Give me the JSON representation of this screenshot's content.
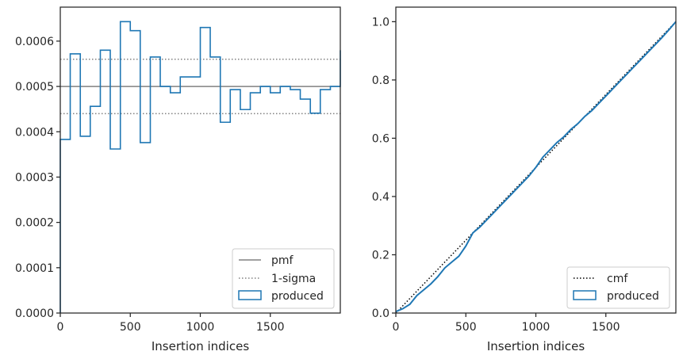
{
  "chart_data": [
    {
      "type": "step",
      "title": "",
      "xlabel": "Insertion indices",
      "ylabel": "",
      "xlim": [
        0,
        2000
      ],
      "ylim": [
        0,
        0.000675
      ],
      "xticks": [
        0,
        500,
        1000,
        1500
      ],
      "yticks": [
        0,
        0.0001,
        0.0002,
        0.0003,
        0.0004,
        0.0005,
        0.0006
      ],
      "ytick_labels": [
        "0.0000",
        "0.0001",
        "0.0002",
        "0.0003",
        "0.0004",
        "0.0005",
        "0.0006"
      ],
      "xtick_labels": [
        "0",
        "500",
        "1000",
        "1500"
      ],
      "legend_position": "lower-right",
      "legend": [
        "pmf",
        "1-sigma",
        "produced"
      ],
      "pmf": 0.0005,
      "sigma_band": [
        0.00044,
        0.00056
      ],
      "bin_edges": [
        0,
        71,
        143,
        214,
        286,
        357,
        429,
        500,
        571,
        643,
        714,
        786,
        857,
        929,
        1000,
        1071,
        1143,
        1214,
        1286,
        1357,
        1429,
        1500,
        1571,
        1643,
        1714,
        1786,
        1857,
        1929,
        2000
      ],
      "produced": [
        0.000383,
        0.000572,
        0.00039,
        0.000456,
        0.00058,
        0.000362,
        0.000643,
        0.000623,
        0.000376,
        0.000565,
        0.0005,
        0.000486,
        0.000521,
        0.000521,
        0.00063,
        0.000565,
        0.000421,
        0.000493,
        0.000449,
        0.000486,
        0.0005,
        0.000486,
        0.0005,
        0.000493,
        0.000472,
        0.000441,
        0.000493,
        0.0005,
        0.00058
      ],
      "colors": {
        "produced": "#1f77b4",
        "pmf": "#808080",
        "sigma": "#808080"
      }
    },
    {
      "type": "line",
      "title": "",
      "xlabel": "Insertion indices",
      "ylabel": "",
      "xlim": [
        0,
        2000
      ],
      "ylim": [
        0,
        1.05
      ],
      "xticks": [
        0,
        500,
        1000,
        1500
      ],
      "yticks": [
        0,
        0.2,
        0.4,
        0.6,
        0.8,
        1.0
      ],
      "ytick_labels": [
        "0.0",
        "0.2",
        "0.4",
        "0.6",
        "0.8",
        "1.0"
      ],
      "xtick_labels": [
        "0",
        "500",
        "1000",
        "1500"
      ],
      "legend_position": "lower-right",
      "legend": [
        "cmf",
        "produced"
      ],
      "cmf": [
        [
          0,
          0
        ],
        [
          2000,
          1.0
        ]
      ],
      "produced": [
        [
          0,
          0.005
        ],
        [
          50,
          0.015
        ],
        [
          100,
          0.03
        ],
        [
          150,
          0.06
        ],
        [
          200,
          0.08
        ],
        [
          250,
          0.1
        ],
        [
          300,
          0.125
        ],
        [
          350,
          0.155
        ],
        [
          400,
          0.175
        ],
        [
          450,
          0.195
        ],
        [
          500,
          0.23
        ],
        [
          550,
          0.275
        ],
        [
          600,
          0.295
        ],
        [
          650,
          0.32
        ],
        [
          700,
          0.345
        ],
        [
          750,
          0.37
        ],
        [
          800,
          0.395
        ],
        [
          850,
          0.42
        ],
        [
          900,
          0.445
        ],
        [
          950,
          0.47
        ],
        [
          1000,
          0.5
        ],
        [
          1050,
          0.535
        ],
        [
          1100,
          0.56
        ],
        [
          1150,
          0.585
        ],
        [
          1200,
          0.605
        ],
        [
          1250,
          0.63
        ],
        [
          1300,
          0.65
        ],
        [
          1350,
          0.675
        ],
        [
          1400,
          0.695
        ],
        [
          1450,
          0.72
        ],
        [
          1500,
          0.745
        ],
        [
          1550,
          0.77
        ],
        [
          1600,
          0.795
        ],
        [
          1650,
          0.82
        ],
        [
          1700,
          0.845
        ],
        [
          1750,
          0.87
        ],
        [
          1800,
          0.895
        ],
        [
          1850,
          0.92
        ],
        [
          1900,
          0.945
        ],
        [
          1950,
          0.972
        ],
        [
          2000,
          1.0
        ]
      ],
      "colors": {
        "produced": "#1f77b4",
        "cmf": "#000000"
      }
    }
  ]
}
